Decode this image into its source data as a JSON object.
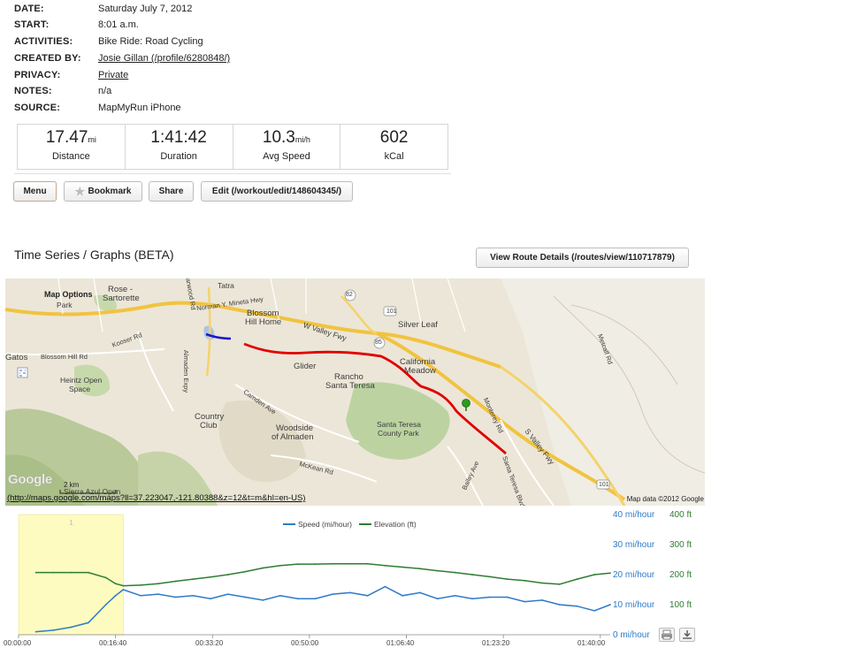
{
  "details": [
    {
      "label": "DATE:",
      "value": "Saturday July 7, 2012"
    },
    {
      "label": "START:",
      "value": "8:01 a.m."
    },
    {
      "label": "ACTIVITIES:",
      "value": "Bike Ride: Road Cycling"
    },
    {
      "label": "CREATED BY:",
      "value": "Josie Gillan (/profile/6280848/)"
    },
    {
      "label": "PRIVACY:",
      "value": "Private"
    },
    {
      "label": "NOTES:",
      "value": "n/a"
    },
    {
      "label": "SOURCE:",
      "value": "MapMyRun iPhone"
    }
  ],
  "stats": [
    {
      "value": "17.47",
      "unit": "mi",
      "label": "Distance"
    },
    {
      "value": "1:41:42",
      "unit": "",
      "label": "Duration"
    },
    {
      "value": "10.3",
      "unit": "mi/h",
      "label": "Avg Speed"
    },
    {
      "value": "602",
      "unit": "",
      "label": "kCal"
    }
  ],
  "actions": {
    "menu": "Menu",
    "bookmark": "Bookmark",
    "share": "Share",
    "edit": "Edit (/workout/edit/148604345/)"
  },
  "graphs": {
    "title": "Time Series / Graphs (BETA)",
    "route_button": "View Route Details (/routes/view/110717879)"
  },
  "map": {
    "options_label": "Map Options",
    "url": "(http://maps.google.com/maps?ll=37.223047,-121.80388&z=12&t=m&hl=en-US)",
    "attribution": "Map data ©2012 Google",
    "logo": "Google",
    "scale": "2 km",
    "labels": {
      "rose": "Rose -",
      "sartorette": "Sartorette",
      "park": "Park",
      "tatra": "Tatra",
      "blossom": "Blossom",
      "hill_home": "Hill Home",
      "silver_leaf": "Silver Leaf",
      "glider": "Glider",
      "california": "California",
      "meadow": "Meadow",
      "rancho": "Rancho",
      "santa_teresa": "Santa Teresa",
      "gatos": "Gatos",
      "heintz1": "Heintz Open",
      "heintz2": "Space",
      "country": "Country",
      "club": "Club",
      "woodside1": "Woodside",
      "woodside2": "of Almaden",
      "stpark1": "Santa Teresa",
      "stpark2": "County Park",
      "sierra": "Sierra Azul Open",
      "w_valley": "W Valley Fwy",
      "s_valley": "S Valley Fwy",
      "norman": "Norman Y. Mineta Hwy",
      "kooser": "Kooser Rd",
      "blossom_hill_rd": "Blossom Hill Rd",
      "camden": "Camden Ave",
      "mckean": "McKean Rd",
      "monterey": "Monterey Rd",
      "metcalf": "Metcalf Rd",
      "bailey": "Bailey Ave",
      "santa_teresa_blvd": "Santa Teresa Blvd",
      "almaden_expy": "Almaden Expy",
      "harwood": "Harwood Rd",
      "r101a": "101",
      "r101b": "101",
      "r82": "82",
      "r85": "85",
      "one": "1"
    }
  },
  "chart_data": {
    "type": "line",
    "x": [
      "00:00:00",
      "00:03:00",
      "00:06:00",
      "00:09:00",
      "00:12:00",
      "00:15:00",
      "00:16:40",
      "00:18:00",
      "00:21:00",
      "00:24:00",
      "00:27:00",
      "00:30:00",
      "00:33:00",
      "00:36:00",
      "00:39:00",
      "00:42:00",
      "00:45:00",
      "00:48:00",
      "00:51:00",
      "00:54:00",
      "00:57:00",
      "01:00:00",
      "01:03:00",
      "01:06:00",
      "01:09:00",
      "01:12:00",
      "01:15:00",
      "01:18:00",
      "01:21:00",
      "01:24:00",
      "01:27:00",
      "01:30:00",
      "01:33:00",
      "01:36:00",
      "01:39:00",
      "01:41:42"
    ],
    "x_ticks": [
      "00:00:00",
      "00:16:40",
      "00:33:20",
      "00:50:00",
      "01:06:40",
      "01:23:20",
      "01:40:00"
    ],
    "series": [
      {
        "name": "Speed (mi/hour)",
        "color": "#2f7ac8",
        "axis": "left",
        "values": [
          null,
          1,
          1.5,
          2.5,
          4,
          10,
          13,
          15,
          13,
          13.5,
          12.5,
          13,
          12,
          13.5,
          12.5,
          11.5,
          13,
          12,
          12,
          13.5,
          14,
          13,
          16,
          13,
          14,
          12,
          13,
          12,
          12.5,
          12.5,
          11,
          11.5,
          10,
          9.5,
          8,
          10
        ]
      },
      {
        "name": "Elevation (ft)",
        "color": "#2e7d32",
        "axis": "right",
        "values": [
          null,
          207,
          207,
          207,
          207,
          190,
          170,
          163,
          165,
          170,
          178,
          185,
          192,
          200,
          210,
          222,
          230,
          235,
          235,
          236,
          236,
          236,
          230,
          225,
          220,
          213,
          207,
          200,
          193,
          185,
          180,
          172,
          168,
          185,
          200,
          205
        ]
      }
    ],
    "y_left": {
      "ticks": [
        "0 mi/hour",
        "10 mi/hour",
        "20 mi/hour",
        "30 mi/hour",
        "40 mi/hour"
      ],
      "range": [
        0,
        40
      ],
      "color": "#2f7ac8"
    },
    "y_right": {
      "ticks": [
        "100 ft",
        "200 ft",
        "300 ft",
        "400 ft"
      ],
      "range": [
        0,
        400
      ],
      "color": "#2e7d32"
    },
    "highlight_range": [
      "00:00:00",
      "00:18:00"
    ],
    "highlight_label": "1",
    "legend_position": "top"
  }
}
